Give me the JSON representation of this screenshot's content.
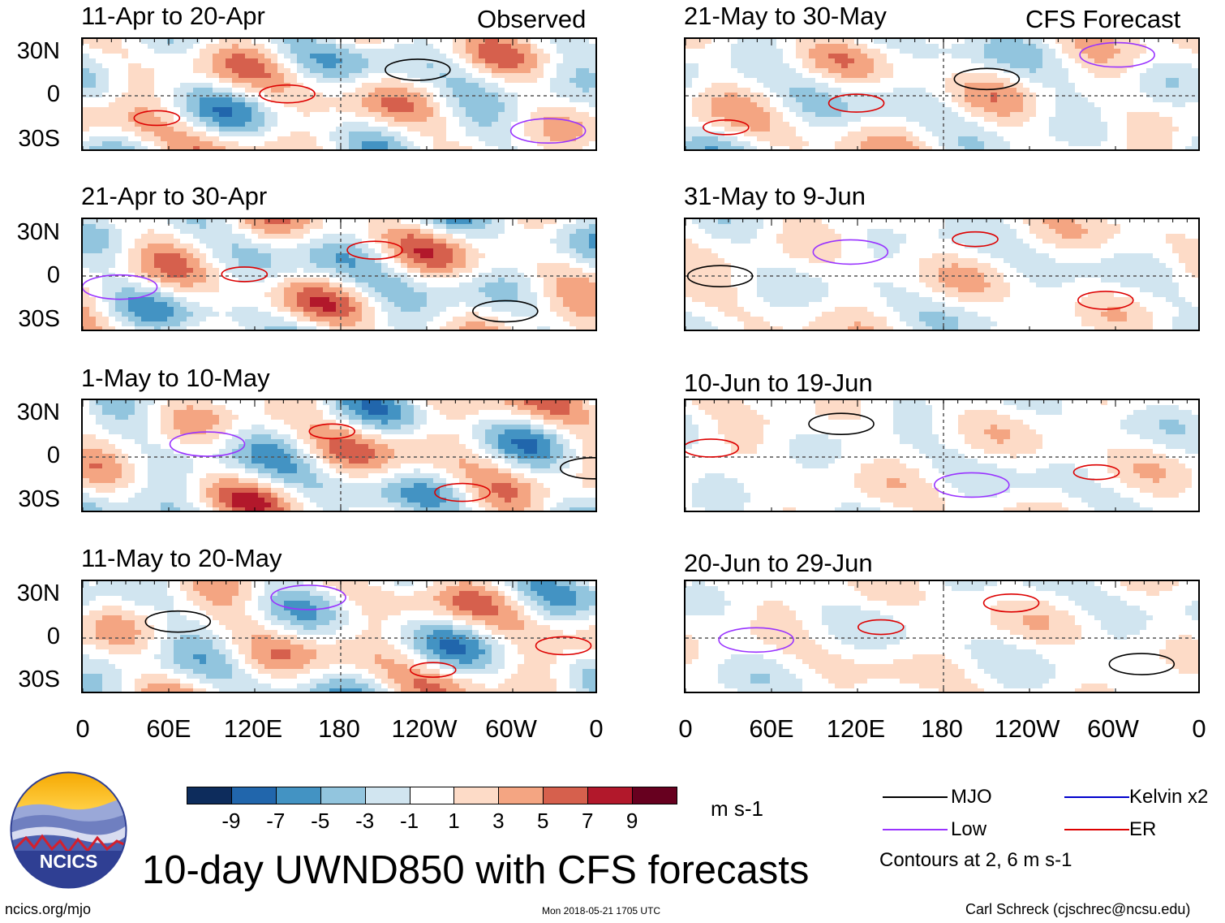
{
  "chart_data": {
    "type": "heatmap",
    "title": "10-day UWND850 with CFS forecasts",
    "variable": "850-hPa zonal wind anomaly",
    "units": "m s-1",
    "column_headers": [
      "Observed",
      "CFS Forecast"
    ],
    "panels": [
      {
        "column": "Observed",
        "period": "11-Apr to 20-Apr"
      },
      {
        "column": "Observed",
        "period": "21-Apr to 30-Apr"
      },
      {
        "column": "Observed",
        "period": "1-May to 10-May"
      },
      {
        "column": "Observed",
        "period": "11-May to 20-May"
      },
      {
        "column": "CFS Forecast",
        "period": "21-May to 30-May"
      },
      {
        "column": "CFS Forecast",
        "period": "31-May to 9-Jun"
      },
      {
        "column": "CFS Forecast",
        "period": "10-Jun to 19-Jun"
      },
      {
        "column": "CFS Forecast",
        "period": "20-Jun to 29-Jun"
      }
    ],
    "y_ticks": [
      "30N",
      "0",
      "30S"
    ],
    "x_ticks": [
      "0",
      "60E",
      "120E",
      "180",
      "120W",
      "60W",
      "0"
    ],
    "xlim_lon": [
      0,
      360
    ],
    "ylim_lat": [
      -40,
      40
    ],
    "colorbar": {
      "levels": [
        "-9",
        "-7",
        "-5",
        "-3",
        "-1",
        "1",
        "3",
        "5",
        "7",
        "9"
      ],
      "colors": [
        "#0d2c5c",
        "#2166ac",
        "#4393c3",
        "#92c5de",
        "#d1e5f0",
        "#ffffff",
        "#fddbc7",
        "#f4a582",
        "#d6604d",
        "#b2182b",
        "#67001f"
      ],
      "units_label": "m s-1"
    },
    "legend": [
      {
        "label": "MJO",
        "color": "#000000"
      },
      {
        "label": "Kelvin x2",
        "color": "#0000cc"
      },
      {
        "label": "Low",
        "color": "#9933ff"
      },
      {
        "label": "ER",
        "color": "#dd0000"
      }
    ],
    "contour_note": "Contours at 2, 6 m s-1"
  },
  "logo": {
    "text": "NCICS"
  },
  "footer": {
    "url": "ncics.org/mjo",
    "timestamp": "Mon 2018-05-21 1705 UTC",
    "credit": "Carl Schreck (cjschrec@ncsu.edu)"
  }
}
